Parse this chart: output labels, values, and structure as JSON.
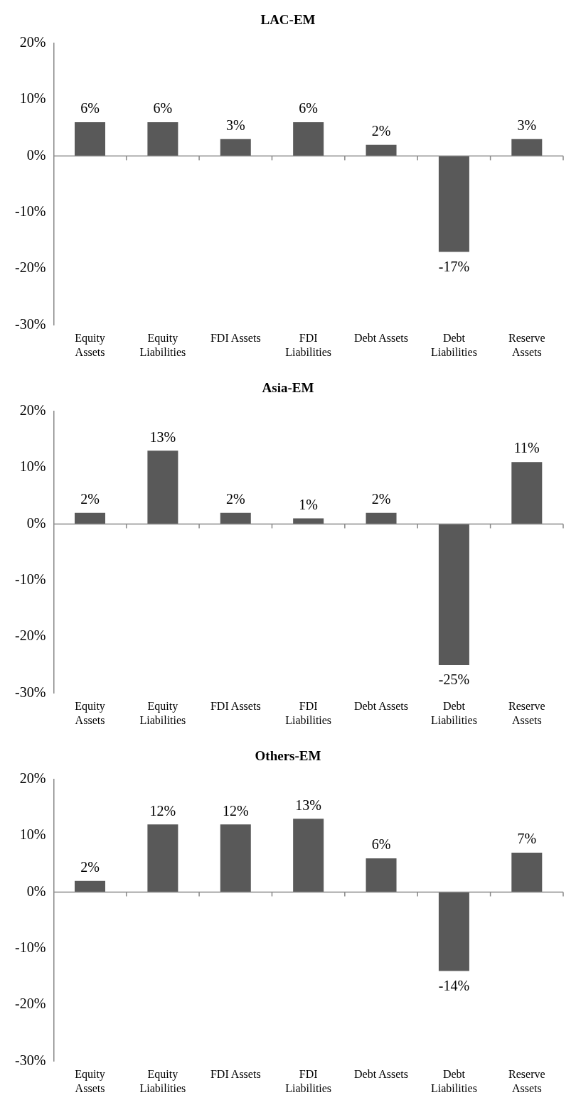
{
  "chart_data": [
    {
      "type": "bar",
      "title": "LAC-EM",
      "categories": [
        "Equity Assets",
        "Equity Liabilities",
        "FDI Assets",
        "FDI Liabilities",
        "Debt Assets",
        "Debt Liabilities",
        "Reserve Assets"
      ],
      "values": [
        6,
        6,
        3,
        6,
        2,
        -17,
        3
      ],
      "value_labels": [
        "6%",
        "6%",
        "3%",
        "6%",
        "2%",
        "-17%",
        "3%"
      ],
      "ref_lines": [
        {
          "axis": "y",
          "value": 0,
          "color": "#888888"
        }
      ],
      "color": "#595959",
      "ylim": [
        -30,
        20
      ],
      "yticks": [
        {
          "value": -30,
          "label": "-30%"
        },
        {
          "value": -20,
          "label": "-20%"
        },
        {
          "value": -10,
          "label": "-10%"
        },
        {
          "value": 0,
          "label": "0%"
        },
        {
          "value": 10,
          "label": "10%"
        },
        {
          "value": 20,
          "label": "20%"
        }
      ],
      "grid": false,
      "legend": false
    },
    {
      "type": "bar",
      "title": "Asia-EM",
      "categories": [
        "Equity Assets",
        "Equity Liabilities",
        "FDI Assets",
        "FDI Liabilities",
        "Debt Assets",
        "Debt Liabilities",
        "Reserve Assets"
      ],
      "values": [
        2,
        13,
        2,
        1,
        2,
        -25,
        11
      ],
      "value_labels": [
        "2%",
        "13%",
        "2%",
        "1%",
        "2%",
        "-25%",
        "11%"
      ],
      "ref_lines": [
        {
          "axis": "y",
          "value": 0,
          "color": "#888888"
        }
      ],
      "color": "#595959",
      "ylim": [
        -30,
        20
      ],
      "yticks": [
        {
          "value": -30,
          "label": "-30%"
        },
        {
          "value": -20,
          "label": "-20%"
        },
        {
          "value": -10,
          "label": "-10%"
        },
        {
          "value": 0,
          "label": "0%"
        },
        {
          "value": 10,
          "label": "10%"
        },
        {
          "value": 20,
          "label": "20%"
        }
      ],
      "grid": false,
      "legend": false
    },
    {
      "type": "bar",
      "title": "Others-EM",
      "categories": [
        "Equity Assets",
        "Equity Liabilities",
        "FDI Assets",
        "FDI Liabilities",
        "Debt Assets",
        "Debt Liabilities",
        "Reserve Assets"
      ],
      "values": [
        2,
        12,
        12,
        13,
        6,
        -14,
        7
      ],
      "value_labels": [
        "2%",
        "12%",
        "12%",
        "13%",
        "6%",
        "-14%",
        "7%"
      ],
      "ref_lines": [
        {
          "axis": "y",
          "value": 0,
          "color": "#888888"
        }
      ],
      "color": "#595959",
      "ylim": [
        -30,
        20
      ],
      "yticks": [
        {
          "value": -30,
          "label": "-30%"
        },
        {
          "value": -20,
          "label": "-20%"
        },
        {
          "value": -10,
          "label": "-10%"
        },
        {
          "value": 0,
          "label": "0%"
        },
        {
          "value": 10,
          "label": "10%"
        },
        {
          "value": 20,
          "label": "20%"
        }
      ],
      "grid": false,
      "legend": false
    }
  ]
}
